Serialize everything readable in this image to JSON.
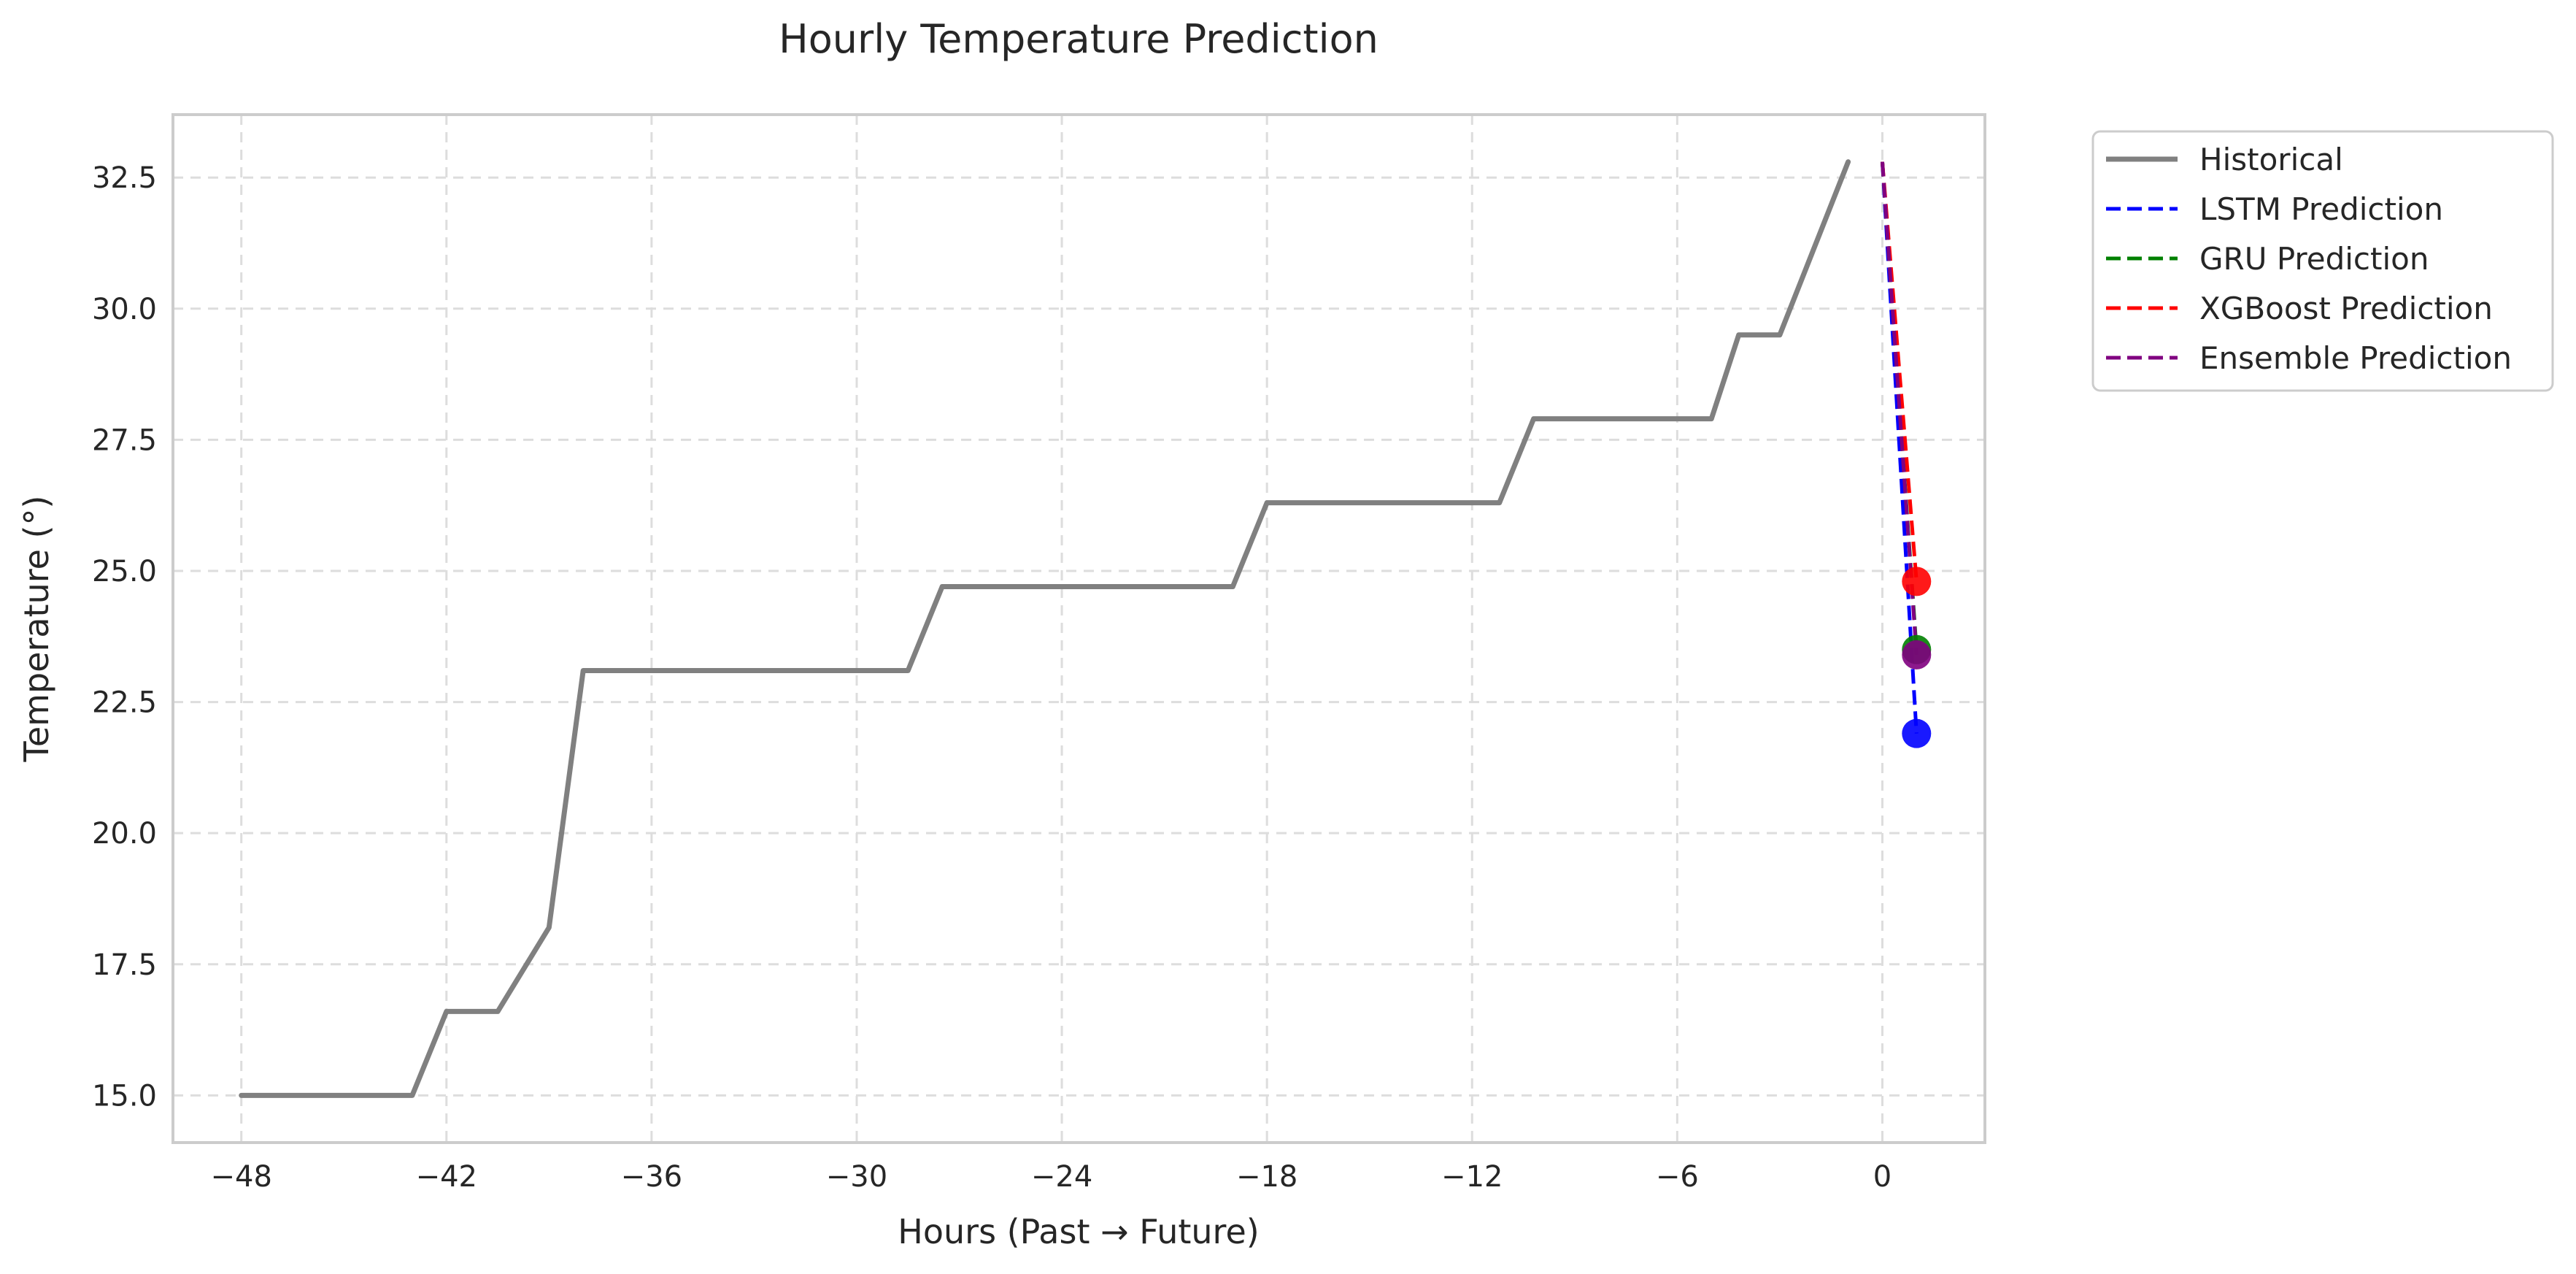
{
  "chart_data": {
    "type": "line",
    "title": "Hourly Temperature Prediction",
    "xlabel": "Hours (Past → Future)",
    "ylabel": "Temperature (°)",
    "xlim": [
      -50,
      3
    ],
    "ylim": [
      14.1,
      33.7
    ],
    "grid": true,
    "legend_position": "outside-top-right",
    "xticks": [
      -48,
      -42,
      -36,
      -30,
      -24,
      -18,
      -12,
      -6,
      0
    ],
    "xtick_labels": [
      "−48",
      "−42",
      "−36",
      "−30",
      "−24",
      "−18",
      "−12",
      "−6",
      "0"
    ],
    "yticks": [
      15.0,
      17.5,
      20.0,
      22.5,
      25.0,
      27.5,
      30.0,
      32.5
    ],
    "ytick_labels": [
      "15.0",
      "17.5",
      "20.0",
      "22.5",
      "25.0",
      "27.5",
      "30.0",
      "32.5"
    ],
    "series": [
      {
        "name": "Historical",
        "style": "solid",
        "color": "#808080",
        "points": [
          [
            -48,
            15.0
          ],
          [
            -43,
            15.0
          ],
          [
            -42,
            16.6
          ],
          [
            -40.5,
            16.6
          ],
          [
            -39,
            18.2
          ],
          [
            -38,
            23.1
          ],
          [
            -28.5,
            23.1
          ],
          [
            -27.5,
            24.7
          ],
          [
            -19,
            24.7
          ],
          [
            -18,
            26.3
          ],
          [
            -11.2,
            26.3
          ],
          [
            -10.2,
            27.9
          ],
          [
            -5,
            27.9
          ],
          [
            -4.2,
            29.5
          ],
          [
            -3,
            29.5
          ],
          [
            -1,
            32.8
          ]
        ]
      },
      {
        "name": "LSTM Prediction",
        "style": "dashed",
        "color": "#0000ff",
        "points": [
          [
            0,
            32.8
          ],
          [
            1,
            21.9
          ]
        ],
        "marker": [
          1,
          21.9
        ]
      },
      {
        "name": "GRU Prediction",
        "style": "dashed",
        "color": "#008000",
        "points": [
          [
            0,
            32.8
          ],
          [
            1,
            23.5
          ]
        ],
        "marker": [
          1,
          23.5
        ]
      },
      {
        "name": "XGBoost Prediction",
        "style": "dashed",
        "color": "#ff0000",
        "points": [
          [
            0,
            32.8
          ],
          [
            1,
            24.8
          ]
        ],
        "marker": [
          1,
          24.8
        ]
      },
      {
        "name": "Ensemble Prediction",
        "style": "dashed",
        "color": "#800080",
        "points": [
          [
            0,
            32.8
          ],
          [
            1,
            23.4
          ]
        ],
        "marker": [
          1,
          23.4
        ]
      }
    ]
  }
}
